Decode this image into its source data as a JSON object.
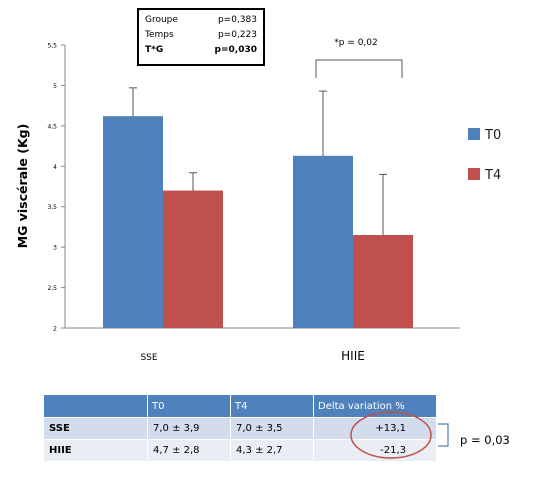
{
  "chart_data": {
    "type": "bar",
    "categories": [
      "SSE",
      "HIIE"
    ],
    "ylabel": "MG viscérale  (Kg)",
    "ylim": [
      2,
      5.5
    ],
    "yticks": [
      "2",
      "2,5",
      "3",
      "3,5",
      "4",
      "4,5",
      "5",
      "5,5"
    ],
    "ytick_values": [
      2,
      2.5,
      3,
      3.5,
      4,
      4.5,
      5,
      5.5
    ],
    "series": [
      {
        "name": "T0",
        "color": "#4f81bd",
        "values": [
          4.62,
          4.13
        ],
        "err": [
          0.35,
          0.8
        ]
      },
      {
        "name": "T4",
        "color": "#c0504d",
        "values": [
          3.7,
          3.15
        ],
        "err": [
          0.22,
          0.75
        ]
      }
    ],
    "legend_position": "right",
    "grid": false,
    "annotation": "*p = 0,02",
    "stats_box": [
      {
        "label": "Groupe",
        "value": "p=0,383"
      },
      {
        "label": "Temps",
        "value": "p=0,223"
      },
      {
        "label": "T*G",
        "value": "p=0,030"
      }
    ]
  },
  "table": {
    "headers": [
      "",
      "T0",
      "T4",
      "Delta variation %"
    ],
    "rows": [
      {
        "label": "SSE",
        "t0": "7,0 ± 3,9",
        "t4": "7,0 ± 3,5",
        "delta": "+13,1"
      },
      {
        "label": "HIIE",
        "t0": "4,7 ± 2,8",
        "t4": "4,3 ± 2,7",
        "delta": "-21,3"
      }
    ]
  },
  "p_note": "p = 0,03",
  "colors": {
    "t0": "#4f81bd",
    "t4": "#c0504d",
    "circle": "#c0504d",
    "bracket": "#4f81bd"
  }
}
